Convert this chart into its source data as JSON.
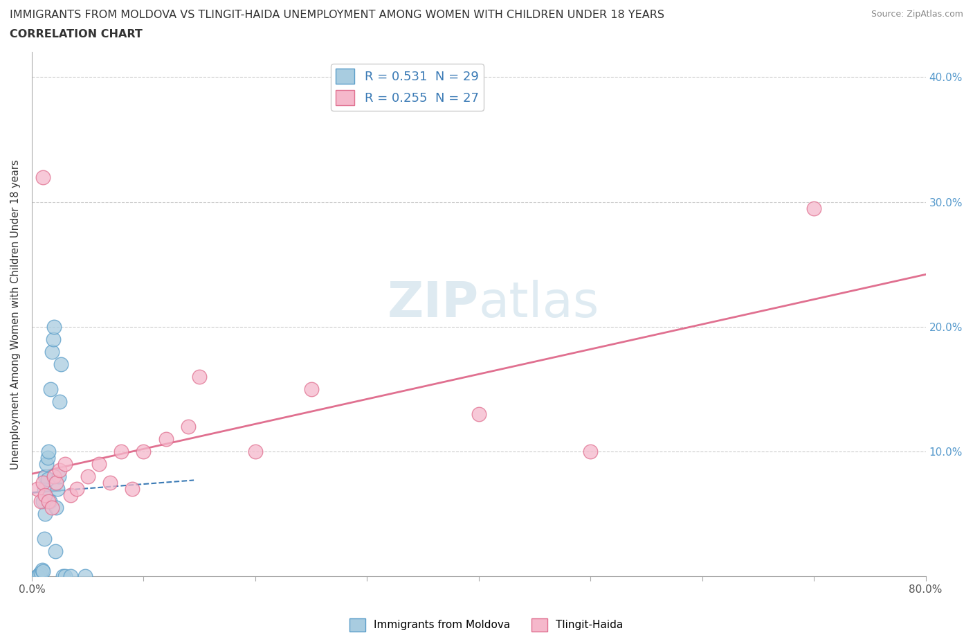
{
  "title_line1": "IMMIGRANTS FROM MOLDOVA VS TLINGIT-HAIDA UNEMPLOYMENT AMONG WOMEN WITH CHILDREN UNDER 18 YEARS",
  "title_line2": "CORRELATION CHART",
  "source": "Source: ZipAtlas.com",
  "ylabel": "Unemployment Among Women with Children Under 18 years",
  "xlim": [
    0.0,
    0.8
  ],
  "ylim": [
    0.0,
    0.42
  ],
  "xtick_vals": [
    0.0,
    0.1,
    0.2,
    0.3,
    0.4,
    0.5,
    0.6,
    0.7,
    0.8
  ],
  "xticklabels": [
    "0.0%",
    "",
    "",
    "",
    "",
    "",
    "",
    "",
    "80.0%"
  ],
  "ytick_vals": [
    0.0,
    0.1,
    0.2,
    0.3,
    0.4
  ],
  "yticklabels_right": [
    "",
    "10.0%",
    "20.0%",
    "30.0%",
    "40.0%"
  ],
  "legend_r1": "R = 0.531  N = 29",
  "legend_r2": "R = 0.255  N = 27",
  "legend_label1": "Immigrants from Moldova",
  "legend_label2": "Tlingit-Haida",
  "blue_scatter_color": "#a8cce0",
  "blue_edge_color": "#5b9ec9",
  "pink_scatter_color": "#f5b8cb",
  "pink_edge_color": "#e07090",
  "blue_line_color": "#3a7ab5",
  "pink_line_color": "#e07090",
  "watermark_color": "#d5eaf5",
  "grid_color": "#cccccc",
  "blue_x": [
    0.005,
    0.007,
    0.008,
    0.009,
    0.01,
    0.01,
    0.011,
    0.011,
    0.012,
    0.012,
    0.013,
    0.014,
    0.014,
    0.015,
    0.016,
    0.017,
    0.018,
    0.019,
    0.02,
    0.021,
    0.022,
    0.023,
    0.024,
    0.025,
    0.026,
    0.028,
    0.03,
    0.035,
    0.048
  ],
  "blue_y": [
    0.0,
    0.002,
    0.003,
    0.005,
    0.004,
    0.06,
    0.03,
    0.07,
    0.05,
    0.08,
    0.09,
    0.078,
    0.095,
    0.1,
    0.06,
    0.15,
    0.18,
    0.19,
    0.2,
    0.02,
    0.055,
    0.07,
    0.08,
    0.14,
    0.17,
    0.0,
    0.0,
    0.0,
    0.0
  ],
  "pink_x": [
    0.005,
    0.008,
    0.01,
    0.012,
    0.015,
    0.018,
    0.02,
    0.022,
    0.025,
    0.03,
    0.035,
    0.04,
    0.05,
    0.06,
    0.07,
    0.08,
    0.09,
    0.1,
    0.12,
    0.14,
    0.15,
    0.2,
    0.25,
    0.4,
    0.5,
    0.7,
    0.01
  ],
  "pink_y": [
    0.07,
    0.06,
    0.075,
    0.065,
    0.06,
    0.055,
    0.08,
    0.075,
    0.085,
    0.09,
    0.065,
    0.07,
    0.08,
    0.09,
    0.075,
    0.1,
    0.07,
    0.1,
    0.11,
    0.12,
    0.16,
    0.1,
    0.15,
    0.13,
    0.1,
    0.295,
    0.32
  ]
}
